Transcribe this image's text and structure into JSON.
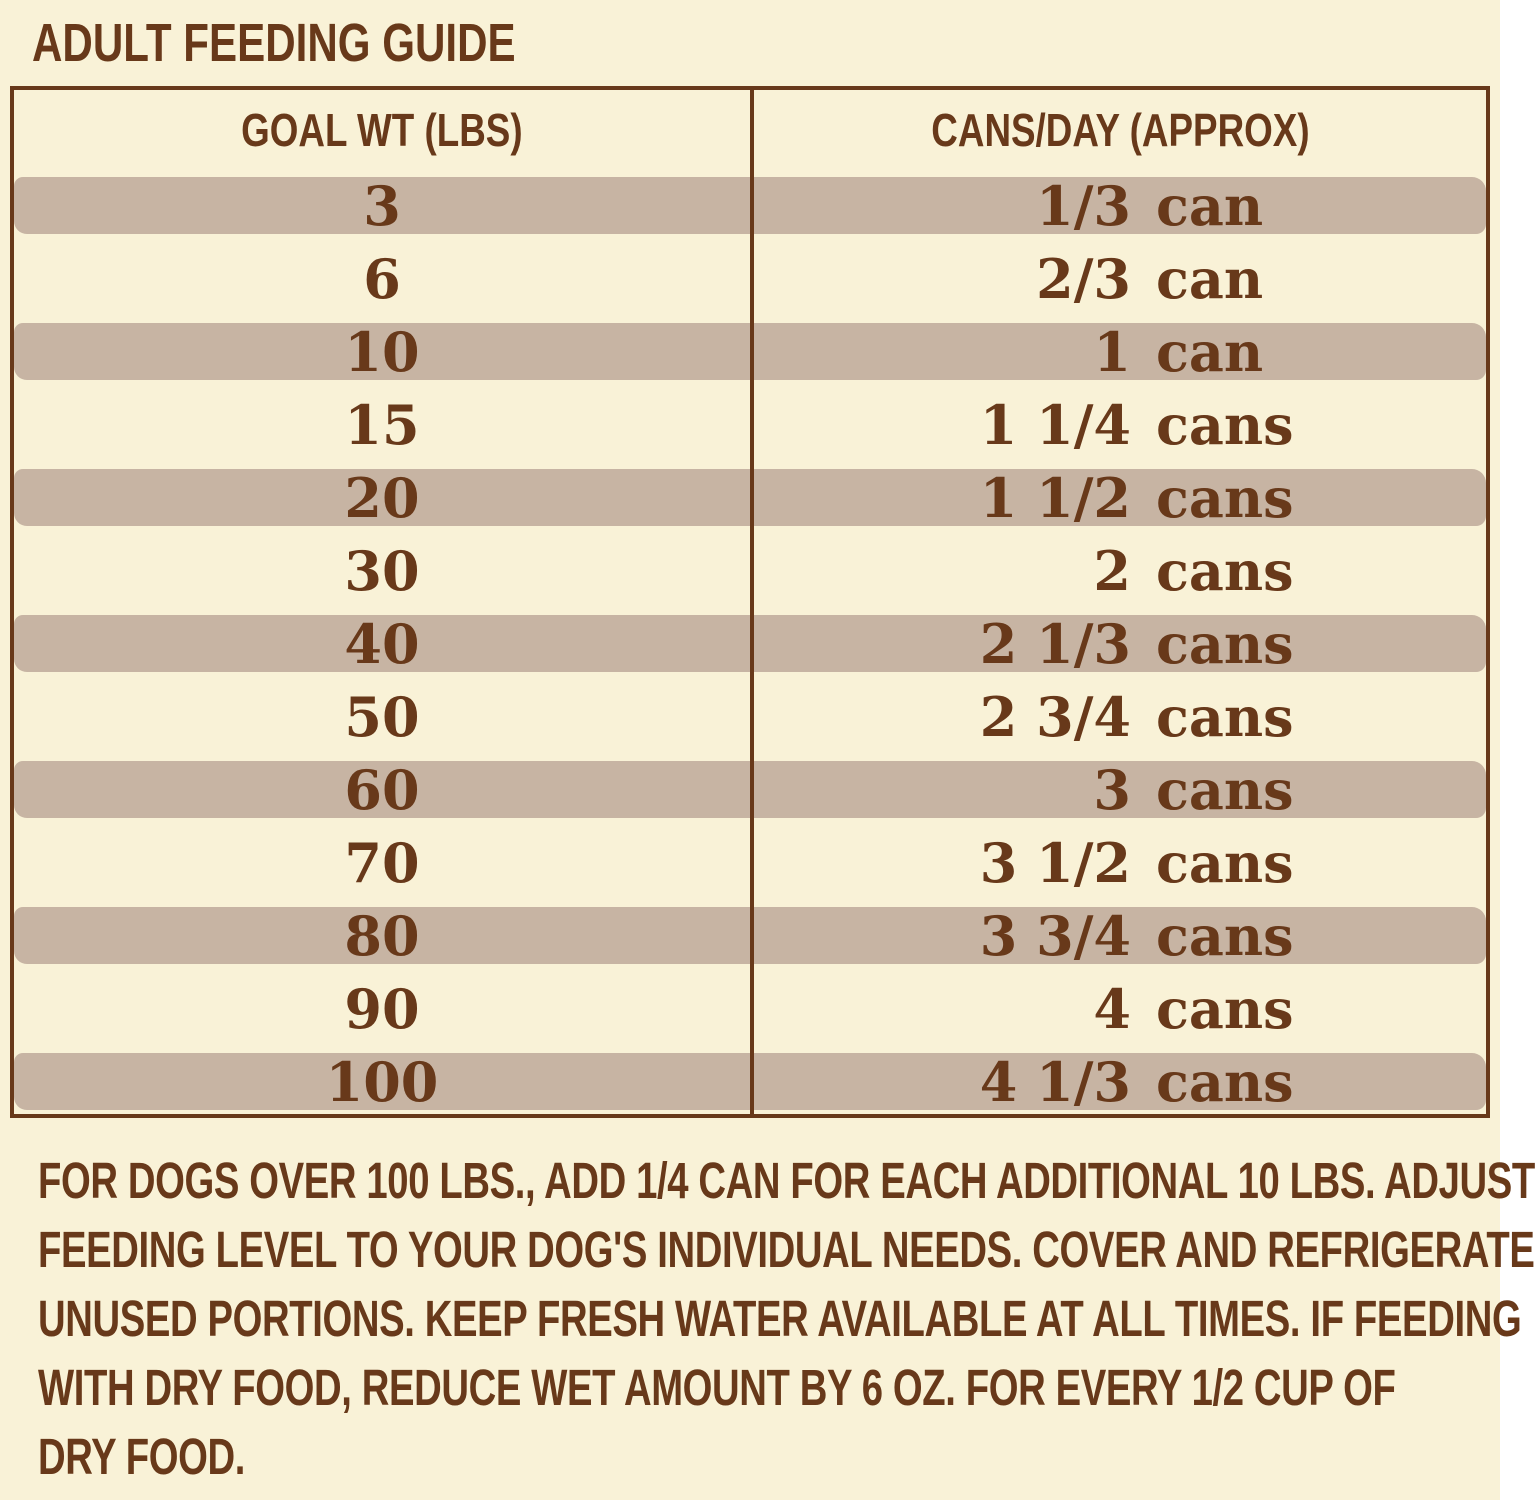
{
  "page": {
    "title": "ADULT FEEDING GUIDE"
  },
  "colors": {
    "background": "#f9f2d7",
    "text_brown": "#68391a",
    "row_stripe": "#c7b4a3"
  },
  "table": {
    "headers": {
      "goal_wt": "GOAL WT (LBS)",
      "cans_day": "CANS/DAY (APPROX)"
    },
    "rows": [
      {
        "goal_wt": "3",
        "amount": "1/3",
        "unit": "can"
      },
      {
        "goal_wt": "6",
        "amount": "2/3",
        "unit": "can"
      },
      {
        "goal_wt": "10",
        "amount": "1",
        "unit": "can"
      },
      {
        "goal_wt": "15",
        "amount": "1 1/4",
        "unit": "cans"
      },
      {
        "goal_wt": "20",
        "amount": "1 1/2",
        "unit": "cans"
      },
      {
        "goal_wt": "30",
        "amount": "2",
        "unit": "cans"
      },
      {
        "goal_wt": "40",
        "amount": "2 1/3",
        "unit": "cans"
      },
      {
        "goal_wt": "50",
        "amount": "2 3/4",
        "unit": "cans"
      },
      {
        "goal_wt": "60",
        "amount": "3",
        "unit": "cans"
      },
      {
        "goal_wt": "70",
        "amount": "3 1/2",
        "unit": "cans"
      },
      {
        "goal_wt": "80",
        "amount": "3 3/4",
        "unit": "cans"
      },
      {
        "goal_wt": "90",
        "amount": "4",
        "unit": "cans"
      },
      {
        "goal_wt": "100",
        "amount": "4 1/3",
        "unit": "cans"
      }
    ]
  },
  "footer": {
    "lines": [
      "FOR DOGS OVER 100 LBS., ADD 1/4 CAN FOR EACH ADDITIONAL 10 LBS. ADJUST",
      "FEEDING LEVEL TO YOUR DOG'S INDIVIDUAL NEEDS. COVER AND REFRIGERATE",
      "UNUSED PORTIONS. KEEP FRESH WATER AVAILABLE AT ALL TIMES. IF FEEDING",
      "WITH DRY FOOD, REDUCE WET AMOUNT BY 6 OZ. FOR EVERY 1/2 CUP OF",
      "DRY FOOD."
    ]
  }
}
